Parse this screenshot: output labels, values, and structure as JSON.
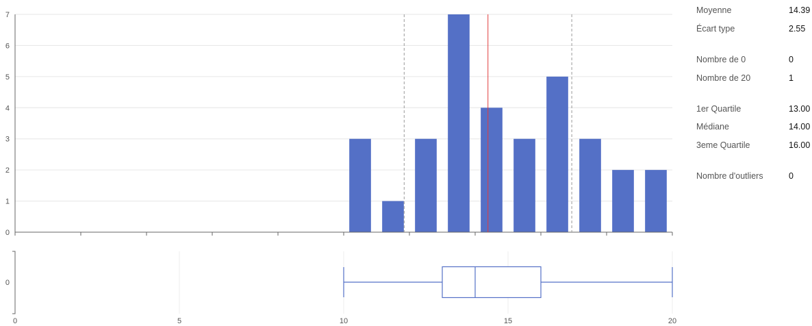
{
  "chart_data": [
    {
      "type": "bar",
      "x_range": [
        0,
        20
      ],
      "ylim": [
        0,
        7
      ],
      "yticks": [
        0,
        1,
        2,
        3,
        4,
        5,
        6,
        7
      ],
      "bins": [
        {
          "start": 10,
          "end": 11,
          "value": 3
        },
        {
          "start": 11,
          "end": 12,
          "value": 1
        },
        {
          "start": 12,
          "end": 13,
          "value": 3
        },
        {
          "start": 13,
          "end": 14,
          "value": 7
        },
        {
          "start": 14,
          "end": 15,
          "value": 4
        },
        {
          "start": 15,
          "end": 16,
          "value": 3
        },
        {
          "start": 16,
          "end": 17,
          "value": 5
        },
        {
          "start": 17,
          "end": 18,
          "value": 3
        },
        {
          "start": 18,
          "end": 19,
          "value": 2
        },
        {
          "start": 19,
          "end": 20,
          "value": 2
        }
      ],
      "reference_lines": {
        "mean": 14.39,
        "std_low": 11.84,
        "std_high": 16.94
      },
      "colors": {
        "bar": "#5470c6",
        "mean_line": "#e23b3b",
        "std_line": "#999999",
        "grid": "#e6e6e6"
      },
      "grid": true
    },
    {
      "type": "boxplot",
      "category": "0",
      "min": 10,
      "q1": 13,
      "median": 14,
      "q3": 16,
      "max": 20,
      "xlim": [
        0,
        20
      ],
      "xticks": [
        0,
        5,
        10,
        15,
        20
      ],
      "colors": {
        "box": "#5470c6"
      }
    }
  ],
  "stats": [
    {
      "label": "Moyenne",
      "value": "14.39"
    },
    {
      "label": "Écart type",
      "value": "2.55"
    },
    {
      "label": "Nombre de 0",
      "value": "0"
    },
    {
      "label": "Nombre de 20",
      "value": "1"
    },
    {
      "label": "1er Quartile",
      "value": "13.00"
    },
    {
      "label": "Médiane",
      "value": "14.00"
    },
    {
      "label": "3eme Quartile",
      "value": "16.00"
    },
    {
      "label": "Nombre d'outliers",
      "value": "0"
    }
  ]
}
